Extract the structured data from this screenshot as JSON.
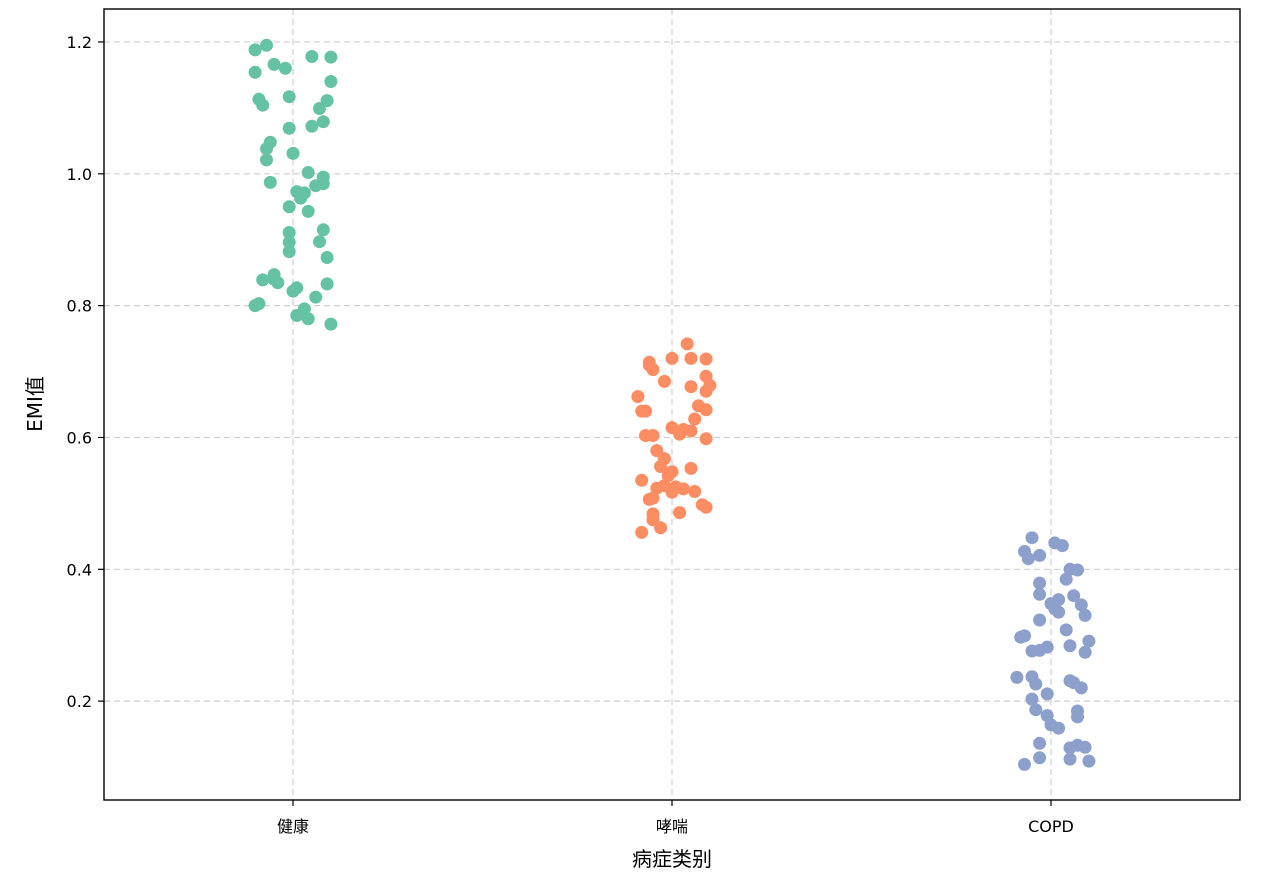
{
  "chart_data": {
    "type": "scatter",
    "subtype": "strip",
    "title": "",
    "xlabel": "病症类别",
    "ylabel": "EMI值",
    "categories": [
      "健康",
      "哮喘",
      "COPD"
    ],
    "ylim": [
      0.05,
      1.25
    ],
    "yticks": [
      0.2,
      0.4,
      0.6,
      0.8,
      1.0,
      1.2
    ],
    "ytick_labels": [
      "0.2",
      "0.4",
      "0.6",
      "0.8",
      "1.0",
      "1.2"
    ],
    "grid": true,
    "legend": "none",
    "series": [
      {
        "category": "健康",
        "color": "#66c2a5",
        "values": [
          1.195,
          1.188,
          1.178,
          1.177,
          1.166,
          1.16,
          1.154,
          1.14,
          1.117,
          1.113,
          1.111,
          1.104,
          1.099,
          1.079,
          1.072,
          1.069,
          1.048,
          1.038,
          1.031,
          1.021,
          1.002,
          0.995,
          0.987,
          0.985,
          0.982,
          0.973,
          0.971,
          0.963,
          0.95,
          0.943,
          0.915,
          0.911,
          0.897,
          0.896,
          0.882,
          0.873,
          0.847,
          0.84,
          0.839,
          0.835,
          0.833,
          0.827,
          0.822,
          0.813,
          0.803,
          0.8,
          0.795,
          0.785,
          0.78,
          0.772
        ],
        "jitter": [
          -0.07,
          -0.1,
          0.05,
          0.1,
          -0.05,
          -0.02,
          -0.1,
          0.1,
          -0.01,
          -0.09,
          0.09,
          -0.08,
          0.07,
          0.08,
          0.05,
          -0.01,
          -0.06,
          -0.07,
          0.0,
          -0.07,
          0.04,
          0.08,
          -0.06,
          0.08,
          0.06,
          0.01,
          0.03,
          0.02,
          -0.01,
          0.04,
          0.08,
          -0.01,
          0.07,
          -0.01,
          -0.01,
          0.09,
          -0.05,
          -0.05,
          -0.08,
          -0.04,
          0.09,
          0.01,
          0.0,
          0.06,
          -0.09,
          -0.1,
          0.03,
          0.01,
          0.04,
          0.1
        ]
      },
      {
        "category": "哮喘",
        "color": "#fc8d62",
        "values": [
          0.742,
          0.72,
          0.72,
          0.719,
          0.714,
          0.71,
          0.703,
          0.693,
          0.685,
          0.679,
          0.677,
          0.67,
          0.662,
          0.648,
          0.642,
          0.64,
          0.64,
          0.628,
          0.615,
          0.612,
          0.61,
          0.605,
          0.603,
          0.603,
          0.598,
          0.58,
          0.568,
          0.556,
          0.553,
          0.548,
          0.542,
          0.535,
          0.527,
          0.525,
          0.523,
          0.522,
          0.518,
          0.517,
          0.508,
          0.506,
          0.498,
          0.494,
          0.486,
          0.484,
          0.475,
          0.463,
          0.456
        ],
        "jitter": [
          0.04,
          0.0,
          0.05,
          0.09,
          -0.06,
          -0.06,
          -0.05,
          0.09,
          -0.02,
          0.1,
          0.05,
          0.09,
          -0.09,
          0.07,
          0.09,
          -0.08,
          -0.07,
          0.06,
          0.0,
          0.03,
          0.05,
          0.02,
          -0.07,
          -0.05,
          0.09,
          -0.04,
          -0.02,
          -0.03,
          0.05,
          0.0,
          -0.01,
          -0.08,
          -0.02,
          0.01,
          -0.04,
          0.03,
          0.06,
          0.0,
          -0.05,
          -0.06,
          0.08,
          0.09,
          0.02,
          -0.05,
          -0.05,
          -0.03,
          -0.08
        ]
      },
      {
        "category": "COPD",
        "color": "#8da0cb",
        "values": [
          0.448,
          0.44,
          0.436,
          0.427,
          0.421,
          0.416,
          0.4,
          0.399,
          0.385,
          0.379,
          0.362,
          0.36,
          0.354,
          0.348,
          0.346,
          0.34,
          0.335,
          0.33,
          0.323,
          0.308,
          0.299,
          0.297,
          0.291,
          0.284,
          0.282,
          0.277,
          0.276,
          0.274,
          0.237,
          0.236,
          0.231,
          0.228,
          0.226,
          0.22,
          0.211,
          0.203,
          0.187,
          0.185,
          0.178,
          0.176,
          0.164,
          0.159,
          0.136,
          0.133,
          0.13,
          0.129,
          0.114,
          0.112,
          0.109,
          0.104
        ],
        "jitter": [
          -0.05,
          0.01,
          0.03,
          -0.07,
          -0.03,
          -0.06,
          0.05,
          0.07,
          0.04,
          -0.03,
          -0.03,
          0.06,
          0.02,
          0.0,
          0.08,
          0.01,
          0.02,
          0.09,
          -0.03,
          0.04,
          -0.07,
          -0.08,
          0.1,
          0.05,
          -0.01,
          -0.03,
          -0.05,
          0.09,
          -0.05,
          -0.09,
          0.05,
          0.06,
          -0.04,
          0.08,
          -0.01,
          -0.05,
          -0.04,
          0.07,
          -0.01,
          0.07,
          0.0,
          0.02,
          -0.03,
          0.07,
          0.09,
          0.05,
          -0.03,
          0.05,
          0.1,
          -0.07
        ]
      }
    ]
  }
}
